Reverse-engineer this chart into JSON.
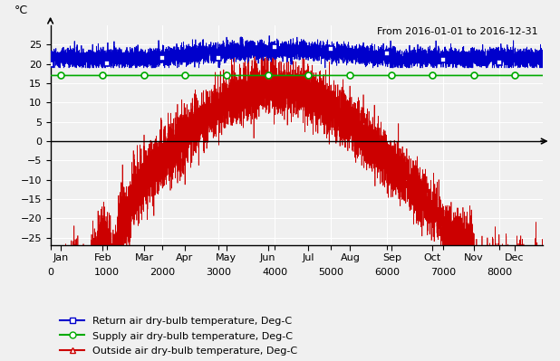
{
  "title_annotation": "From 2016-01-01 to 2016-12-31",
  "ylabel": "°C",
  "xlim": [
    0,
    8784
  ],
  "ylim": [
    -27,
    30
  ],
  "yticks": [
    -25,
    -20,
    -15,
    -10,
    -5,
    0,
    5,
    10,
    15,
    20,
    25
  ],
  "month_labels": [
    "Jan",
    "Feb",
    "Mar",
    "Apr",
    "May",
    "Jun",
    "Jul",
    "Aug",
    "Sep",
    "Oct",
    "Nov",
    "Dec"
  ],
  "month_positions": [
    186,
    930,
    1674,
    2390,
    3134,
    3878,
    4598,
    5342,
    6086,
    6806,
    7550,
    8270
  ],
  "xtick_numeric": [
    0,
    1000,
    2000,
    3000,
    4000,
    5000,
    6000,
    7000,
    8000
  ],
  "supply_temp": 17.0,
  "supply_marker_positions": [
    186,
    930,
    1674,
    2390,
    3134,
    3878,
    4598,
    5342,
    6086,
    6806,
    7550,
    8270
  ],
  "return_marker_positions": [
    0,
    1000,
    2000,
    3000,
    4000,
    5000,
    6000,
    7000,
    8000
  ],
  "return_air_base": 21.0,
  "return_color": "#0000CC",
  "supply_color": "#00AA00",
  "outside_color": "#CC0000",
  "legend_labels": [
    "Return air dry-bulb temperature, Deg-C",
    "Supply air dry-bulb temperature, Deg-C",
    "Outside air dry-bulb temperature, Deg-C"
  ],
  "background_color": "#F0F0F0",
  "grid_color": "#FFFFFF",
  "figsize": [
    6.18,
    3.99
  ],
  "dpi": 100
}
